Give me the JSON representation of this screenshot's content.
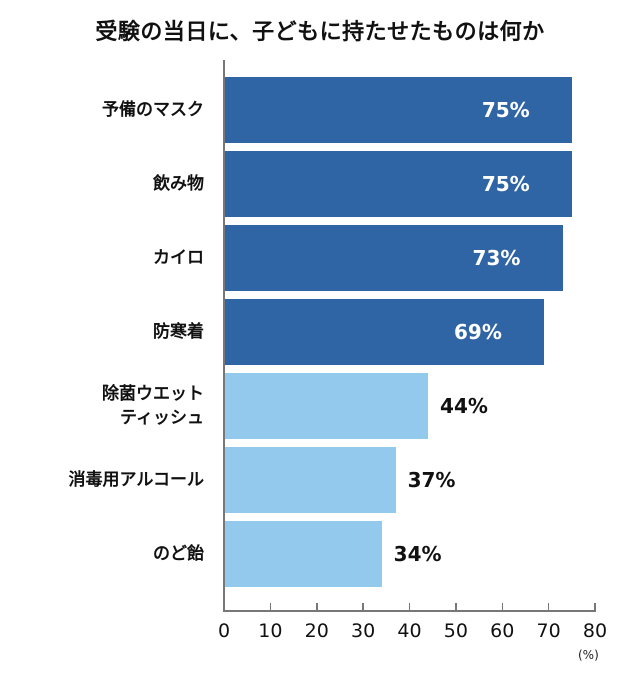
{
  "chart_data": {
    "type": "bar",
    "orientation": "horizontal",
    "title": "受験の当日に、子どもに持たせたものは何か",
    "xlabel": "",
    "ylabel": "",
    "unit_label": "(%)",
    "xlim": [
      0,
      80
    ],
    "x_ticks": [
      0,
      10,
      20,
      30,
      40,
      50,
      60,
      70,
      80
    ],
    "grid": false,
    "legend": null,
    "categories": [
      "予備のマスク",
      "飲み物",
      "カイロ",
      "防寒着",
      "除菌ウエットティッシュ",
      "消毒用アルコール",
      "のど飴"
    ],
    "category_lines": [
      [
        "予備のマスク"
      ],
      [
        "飲み物"
      ],
      [
        "カイロ"
      ],
      [
        "防寒着"
      ],
      [
        "除菌ウエット",
        "ティッシュ"
      ],
      [
        "消毒用アルコール"
      ],
      [
        "のど飴"
      ]
    ],
    "values": [
      75,
      75,
      73,
      69,
      44,
      37,
      34
    ],
    "value_labels": [
      "75%",
      "75%",
      "73%",
      "69%",
      "44%",
      "37%",
      "34%"
    ],
    "colors": [
      "#2f64a5",
      "#2f64a5",
      "#2f64a5",
      "#2f64a5",
      "#93c9ec",
      "#93c9ec",
      "#93c9ec"
    ]
  },
  "colors": {
    "dark": "#2f64a5",
    "light": "#93c9ec",
    "axis": "#777777"
  }
}
